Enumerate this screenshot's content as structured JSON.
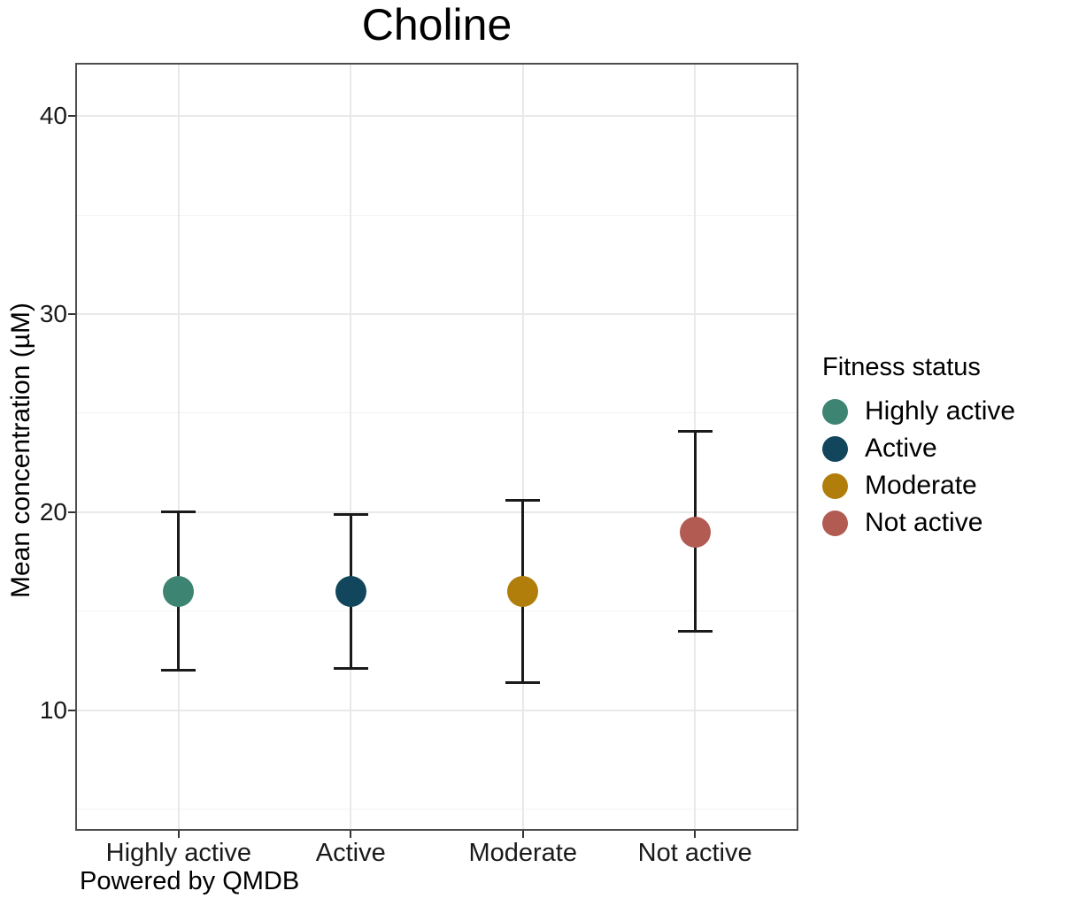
{
  "title": "Choline",
  "caption": "Powered by QMDB",
  "axes": {
    "y_label": "Mean concentration (µM)",
    "y_ticks": [
      40,
      30,
      20,
      10
    ],
    "x_categories": [
      "Highly active",
      "Active",
      "Moderate",
      "Not active"
    ]
  },
  "legend": {
    "title": "Fitness status",
    "position": "right",
    "entries": [
      {
        "label": "Highly active",
        "color": "#3E8472"
      },
      {
        "label": "Active",
        "color": "#12465C"
      },
      {
        "label": "Moderate",
        "color": "#B17D0B"
      },
      {
        "label": "Not active",
        "color": "#B15B52"
      }
    ]
  },
  "chart_data": {
    "type": "scatter",
    "subtype": "point-with-error-bars",
    "title": "Choline",
    "xlabel": "",
    "ylabel": "Mean concentration (µM)",
    "categories": [
      "Highly active",
      "Active",
      "Moderate",
      "Not active"
    ],
    "points": [
      {
        "category": "Highly active",
        "mean": 16.0,
        "ymin": 12.0,
        "ymax": 20.0,
        "color": "#3E8472"
      },
      {
        "category": "Active",
        "mean": 16.0,
        "ymin": 12.1,
        "ymax": 19.9,
        "color": "#12465C"
      },
      {
        "category": "Moderate",
        "mean": 16.0,
        "ymin": 11.4,
        "ymax": 20.6,
        "color": "#B17D0B"
      },
      {
        "category": "Not active",
        "mean": 19.0,
        "ymin": 14.0,
        "ymax": 24.1,
        "color": "#B15B52"
      }
    ],
    "ylim": [
      3.9,
      42.7
    ],
    "y_major_gridlines": [
      10,
      20,
      30,
      40
    ],
    "y_minor_gridlines": [
      5,
      15,
      25,
      35
    ],
    "grid": true,
    "legend_title": "Fitness status",
    "legend_position": "right"
  }
}
